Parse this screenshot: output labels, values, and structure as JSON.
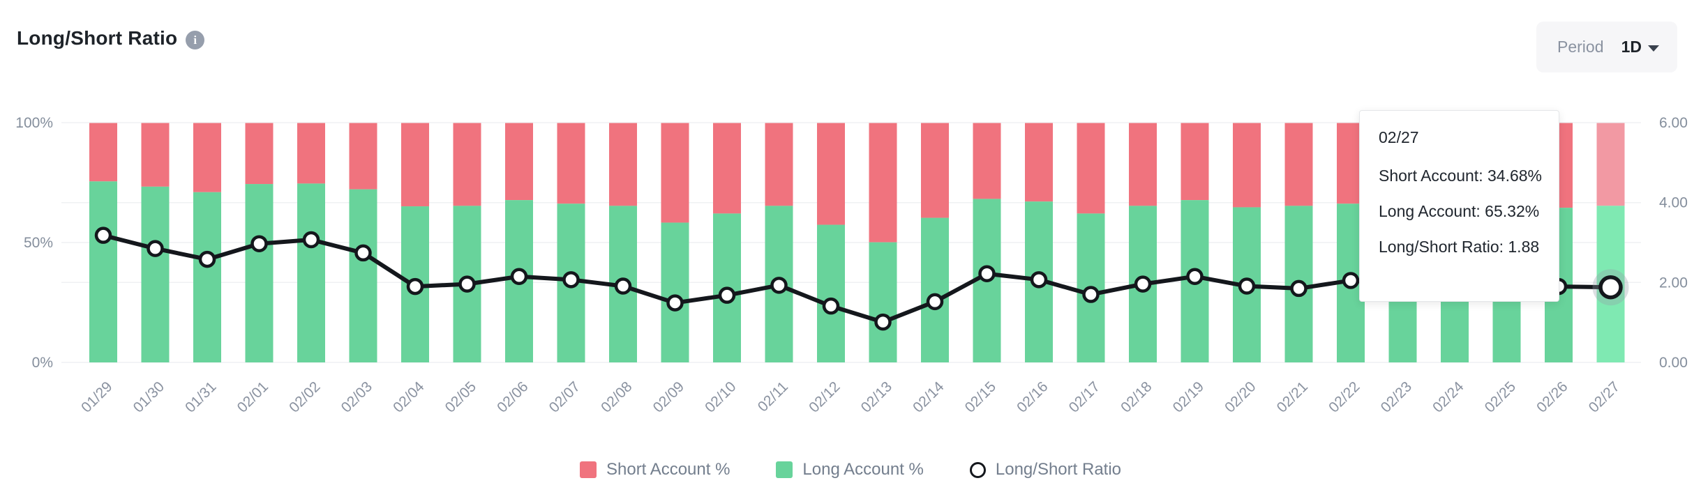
{
  "header": {
    "title": "Long/Short Ratio"
  },
  "period_control": {
    "label": "Period",
    "value": "1D"
  },
  "tooltip": {
    "date": "02/27",
    "lines": [
      "Short Account: 34.68%",
      "Long Account: 65.32%",
      "Long/Short Ratio: 1.88"
    ]
  },
  "legend": {
    "items": [
      {
        "label": "Short Account %",
        "swatch": "red-square",
        "color": "#F0737E"
      },
      {
        "label": "Long Account %",
        "swatch": "green-square",
        "color": "#68D39B"
      },
      {
        "label": "Long/Short Ratio",
        "swatch": "circle-outline",
        "color": "#14171C"
      }
    ]
  },
  "chart_data": {
    "type": "bar",
    "stacked": true,
    "title": "Long/Short Ratio",
    "categories": [
      "01/29",
      "01/30",
      "01/31",
      "02/01",
      "02/02",
      "02/03",
      "02/04",
      "02/05",
      "02/06",
      "02/07",
      "02/08",
      "02/09",
      "02/10",
      "02/11",
      "02/12",
      "02/13",
      "02/14",
      "02/15",
      "02/16",
      "02/17",
      "02/18",
      "02/19",
      "02/20",
      "02/21",
      "02/22",
      "02/23",
      "02/24",
      "02/25",
      "02/26",
      "02/27"
    ],
    "series": [
      {
        "name": "Long Account %",
        "type": "bar",
        "axis": "left",
        "color": "#68D39B",
        "values": [
          75.5,
          73.3,
          71.0,
          74.4,
          74.6,
          72.2,
          65.1,
          65.3,
          67.7,
          66.2,
          65.3,
          58.3,
          62.1,
          65.3,
          57.4,
          50.1,
          60.3,
          68.2,
          67.1,
          62.1,
          65.3,
          67.7,
          64.7,
          65.3,
          66.2,
          63.0,
          64.0,
          63.5,
          64.5,
          65.32
        ]
      },
      {
        "name": "Short Account %",
        "type": "bar",
        "axis": "left",
        "color": "#F0737E",
        "values": [
          24.5,
          26.7,
          29.0,
          25.6,
          25.4,
          27.8,
          34.9,
          34.7,
          32.3,
          33.8,
          34.7,
          41.7,
          37.9,
          34.7,
          42.6,
          49.9,
          39.7,
          31.8,
          32.9,
          37.9,
          34.7,
          32.3,
          35.3,
          34.7,
          33.8,
          37.0,
          36.0,
          36.5,
          35.5,
          34.68
        ]
      },
      {
        "name": "Long/Short Ratio",
        "type": "line",
        "axis": "right",
        "color": "#14171C",
        "values": [
          3.18,
          2.85,
          2.58,
          2.97,
          3.07,
          2.74,
          1.9,
          1.96,
          2.15,
          2.07,
          1.91,
          1.49,
          1.68,
          1.93,
          1.41,
          1.01,
          1.52,
          2.22,
          2.07,
          1.7,
          1.96,
          2.15,
          1.91,
          1.85,
          2.05,
          1.95,
          1.9,
          1.92,
          1.9,
          1.88
        ]
      }
    ],
    "left_axis": {
      "ticks": [
        "0%",
        "50%",
        "100%"
      ],
      "tick_values": [
        0,
        50,
        100
      ],
      "range": [
        0,
        100
      ]
    },
    "right_axis": {
      "ticks": [
        "0.00",
        "2.00",
        "4.00",
        "6.00"
      ],
      "tick_values": [
        0,
        2,
        4,
        6
      ],
      "range": [
        0,
        6
      ]
    },
    "grid": true,
    "legend_position": "bottom",
    "highlight": {
      "index": 29,
      "long_color": "#7FE9B2",
      "short_color": "#F299A3"
    },
    "grid_color": "#EFF1F3",
    "axis_label_color": "#848E9C"
  }
}
